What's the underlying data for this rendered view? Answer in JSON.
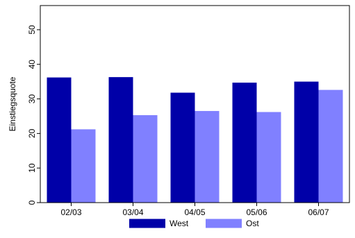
{
  "chart_data": {
    "type": "bar",
    "title": "",
    "xlabel": "",
    "ylabel": "Einstiegsquote",
    "categories": [
      "02/03",
      "03/04",
      "04/05",
      "05/06",
      "06/07"
    ],
    "series": [
      {
        "name": "West",
        "values": [
          36.2,
          36.3,
          31.8,
          34.7,
          35.0
        ],
        "color": "#0000a8"
      },
      {
        "name": "Ost",
        "values": [
          21.2,
          25.3,
          26.5,
          26.2,
          32.6
        ],
        "color": "#8080ff"
      }
    ],
    "ylim": [
      0,
      57
    ],
    "yticks": [
      0,
      10,
      20,
      30,
      40,
      50
    ],
    "grid": false,
    "legend_position": "bottom"
  }
}
